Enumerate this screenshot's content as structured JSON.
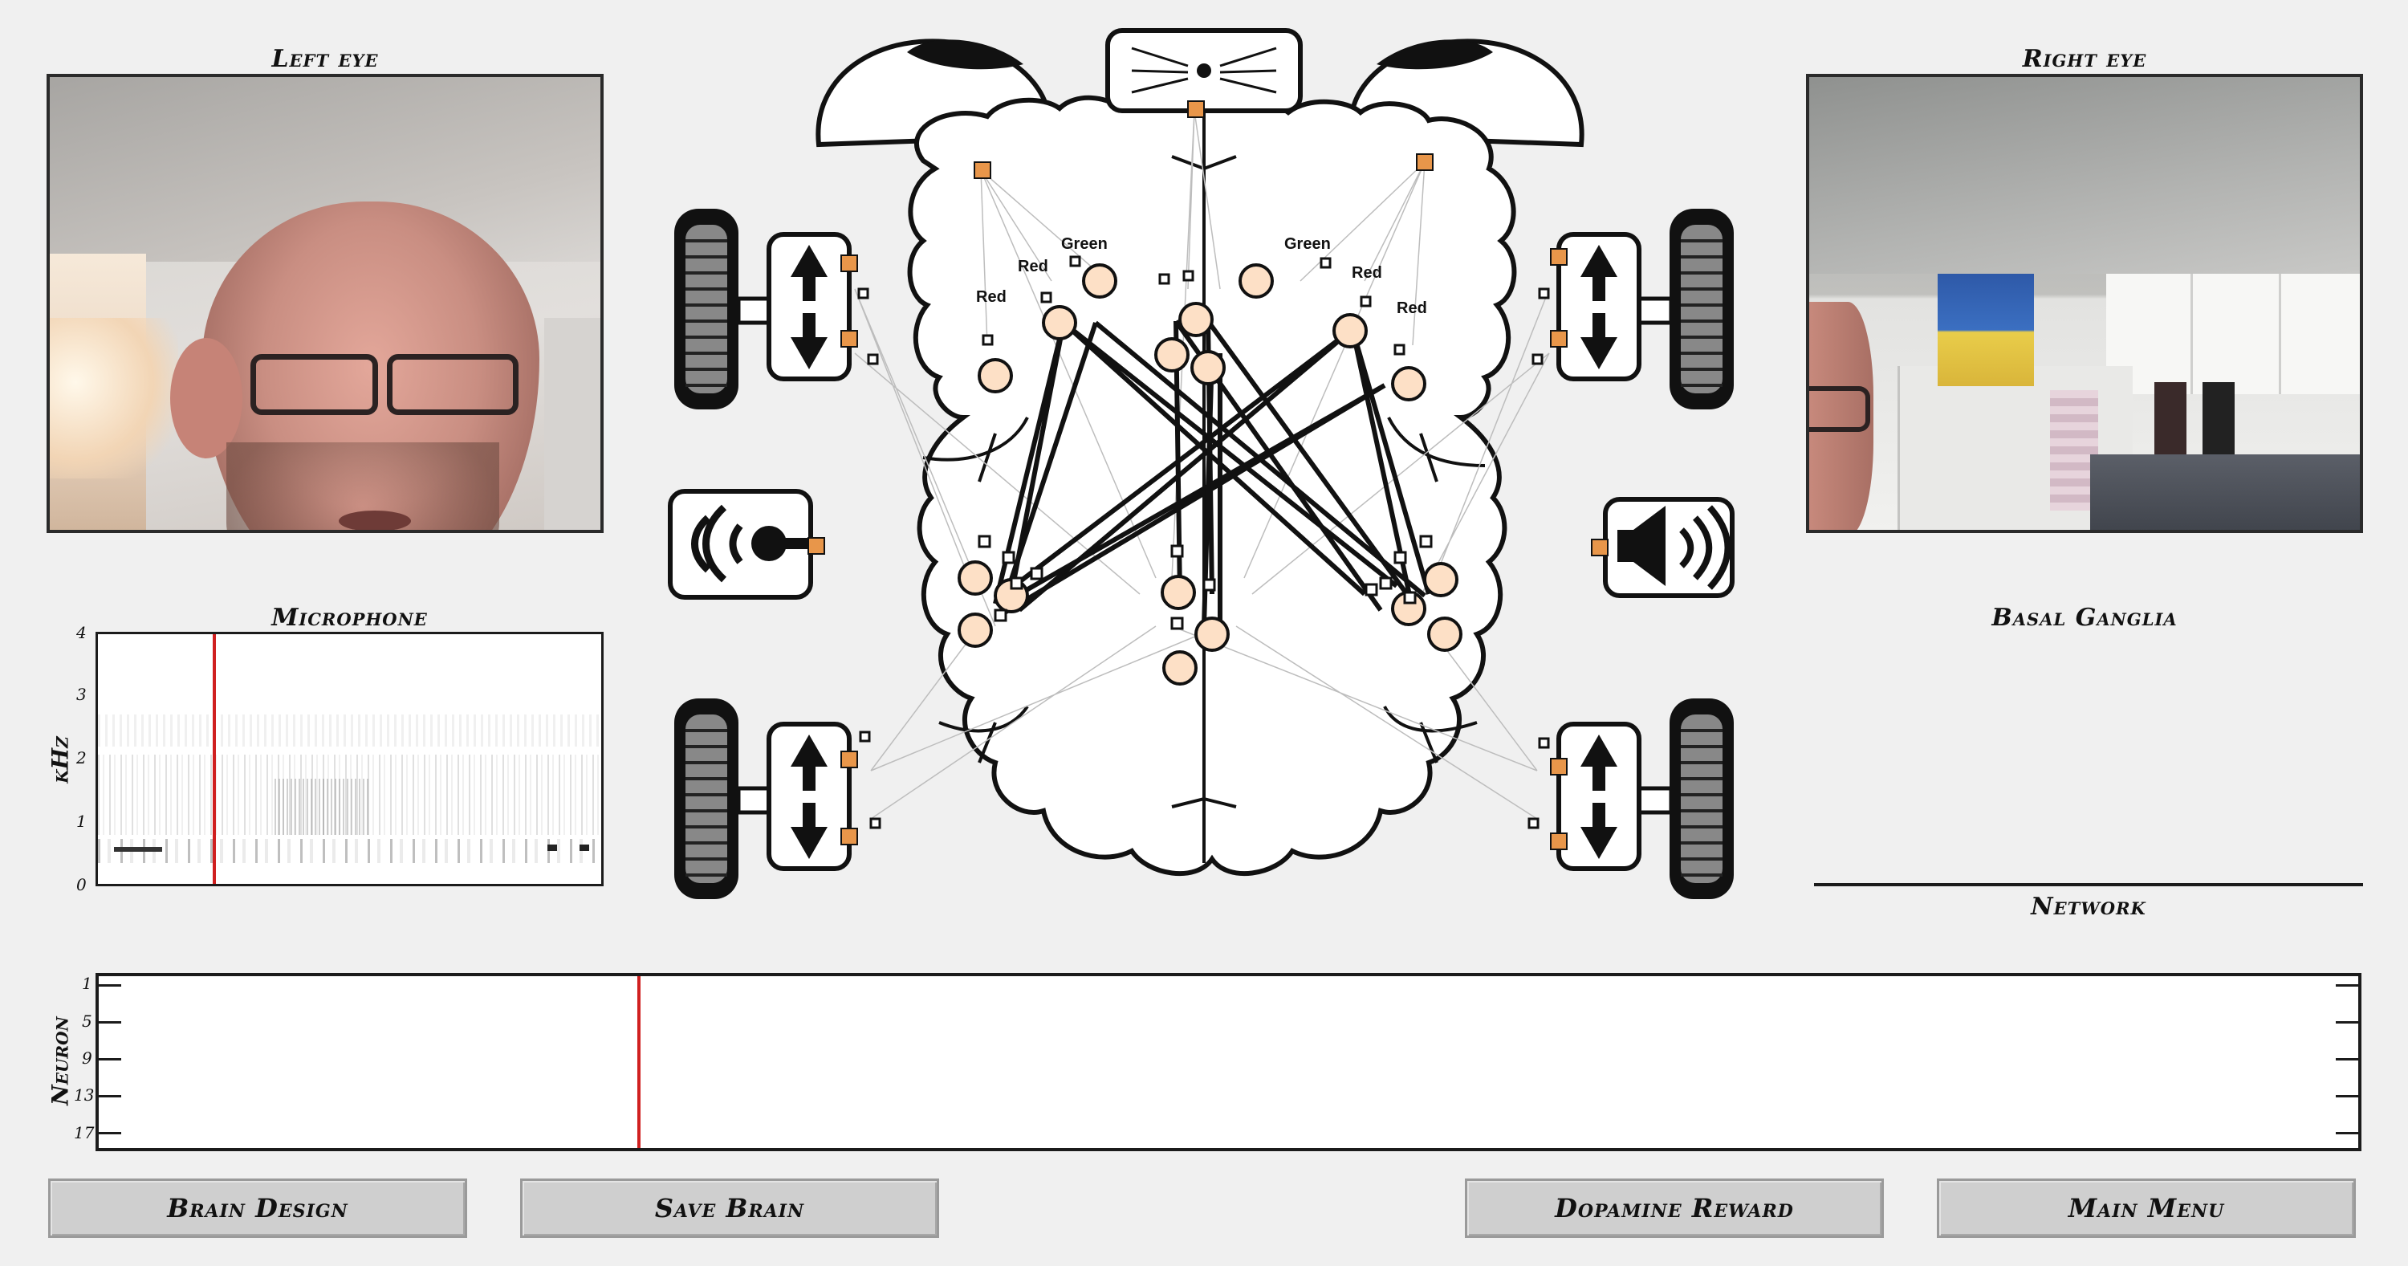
{
  "panels": {
    "left_eye": "Left eye",
    "right_eye": "Right eye",
    "microphone": "Microphone",
    "basal_ganglia": "Basal Ganglia",
    "network": "Network"
  },
  "spectrogram": {
    "ylabel": "kHz",
    "yticks": [
      "4",
      "3",
      "2",
      "1",
      "0"
    ]
  },
  "raster": {
    "ylabel": "Neuron",
    "yticks": [
      "1",
      "5",
      "9",
      "13",
      "17"
    ]
  },
  "neuron_labels": {
    "left_green": "Green",
    "left_red_top": "Red",
    "left_red_bottom": "Red",
    "right_green": "Green",
    "right_red_top": "Red",
    "right_red_bottom": "Red"
  },
  "buttons": {
    "brain_design": "Brain Design",
    "save_brain": "Save Brain",
    "dopamine_reward": "Dopamine Reward",
    "main_menu": "Main Menu"
  },
  "colors": {
    "sensor_port": "#e8964a",
    "neuron_fill": "#fde0c6",
    "playhead": "#d02020"
  },
  "icons": [
    "camera-left-eye",
    "camera-right-eye",
    "nose-sensor-icon",
    "microphone-icon",
    "speaker-icon",
    "motor-arrow-icon",
    "wheel-icon"
  ]
}
